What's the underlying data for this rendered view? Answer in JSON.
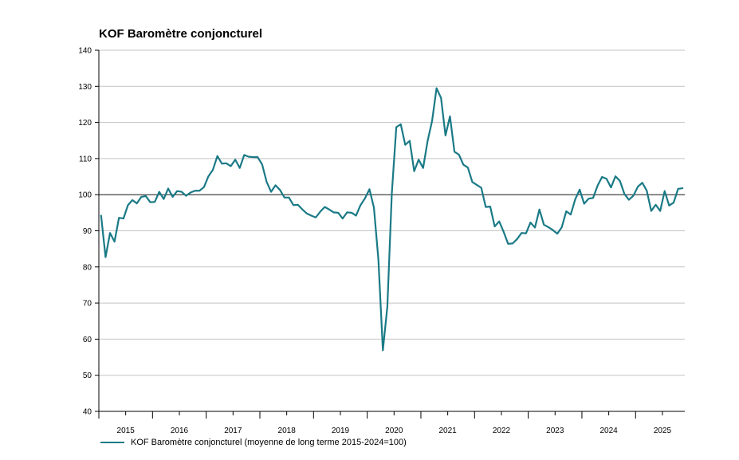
{
  "chart_data": {
    "type": "line",
    "title": "KOF Baromètre conjoncturel",
    "xlabel": "",
    "ylabel": "",
    "ylim": [
      40,
      140
    ],
    "yticks": [
      40,
      50,
      60,
      70,
      80,
      90,
      100,
      110,
      120,
      130,
      140
    ],
    "reference_line": 100,
    "grid": true,
    "x_tick_labels": [
      "2015",
      "2016",
      "2017",
      "2018",
      "2019",
      "2020",
      "2021",
      "2022",
      "2023",
      "2024",
      "2025"
    ],
    "x_start_year": 2015,
    "x_months": 131,
    "legend_position": "bottom-left",
    "series": [
      {
        "name": "KOF Baromètre conjoncturel (moyenne de long terme 2015-2024=100)",
        "color": "#1a7a86",
        "start": "2015-01",
        "values": [
          94.2,
          82.7,
          89.4,
          87.0,
          93.6,
          93.4,
          97.1,
          98.5,
          97.6,
          99.4,
          99.6,
          97.9,
          98.0,
          100.8,
          98.8,
          101.7,
          99.4,
          101.0,
          100.8,
          99.7,
          100.6,
          101.1,
          101.1,
          102.1,
          105.1,
          106.9,
          110.7,
          108.6,
          108.7,
          107.9,
          109.7,
          107.4,
          111.0,
          110.5,
          110.4,
          110.4,
          108.4,
          103.6,
          100.8,
          102.6,
          101.3,
          99.2,
          99.2,
          97.1,
          97.2,
          95.9,
          94.8,
          94.2,
          93.7,
          95.3,
          96.6,
          95.9,
          95.1,
          95.0,
          93.4,
          95.1,
          95.0,
          94.2,
          97.1,
          99.0,
          101.5,
          96.4,
          82.0,
          56.9,
          69.0,
          100.4,
          118.7,
          119.5,
          113.8,
          114.9,
          106.5,
          109.7,
          107.4,
          114.9,
          120.4,
          129.5,
          126.8,
          116.4,
          121.7,
          111.9,
          111.1,
          108.3,
          107.5,
          103.5,
          102.7,
          101.9,
          96.6,
          96.7,
          91.2,
          92.6,
          89.7,
          86.4,
          86.5,
          87.7,
          89.4,
          89.3,
          92.3,
          90.9,
          95.9,
          91.7,
          91.0,
          90.2,
          89.2,
          91.0,
          95.4,
          94.5,
          98.7,
          101.4,
          97.5,
          98.9,
          99.1,
          102.5,
          104.9,
          104.4,
          102.0,
          105.1,
          103.8,
          100.2,
          98.6,
          99.7,
          102.2,
          103.3,
          101.1,
          95.5,
          97.2,
          95.5,
          101.0,
          97.0,
          97.8,
          101.6,
          101.8
        ]
      }
    ]
  }
}
